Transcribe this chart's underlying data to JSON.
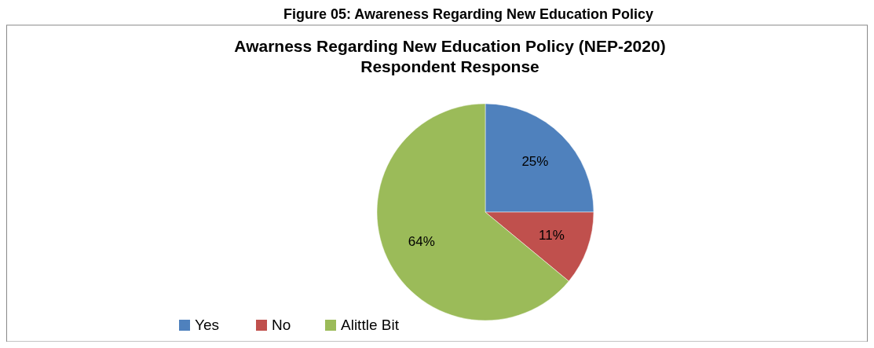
{
  "chart_data": {
    "type": "pie",
    "title": "Awarness Regarding New Education Policy (NEP-2020)\nRespondent Response",
    "annotations": [
      "Figure 05: Awareness Regarding New Education Policy"
    ],
    "categories": [
      "Yes",
      "No",
      "Alittle Bit"
    ],
    "values": [
      25,
      11,
      64
    ],
    "colors": [
      "#4f81bd",
      "#c0504d",
      "#9bbb59"
    ],
    "value_labels": [
      "25%",
      "11%",
      "64%"
    ],
    "legend": "bottom"
  }
}
